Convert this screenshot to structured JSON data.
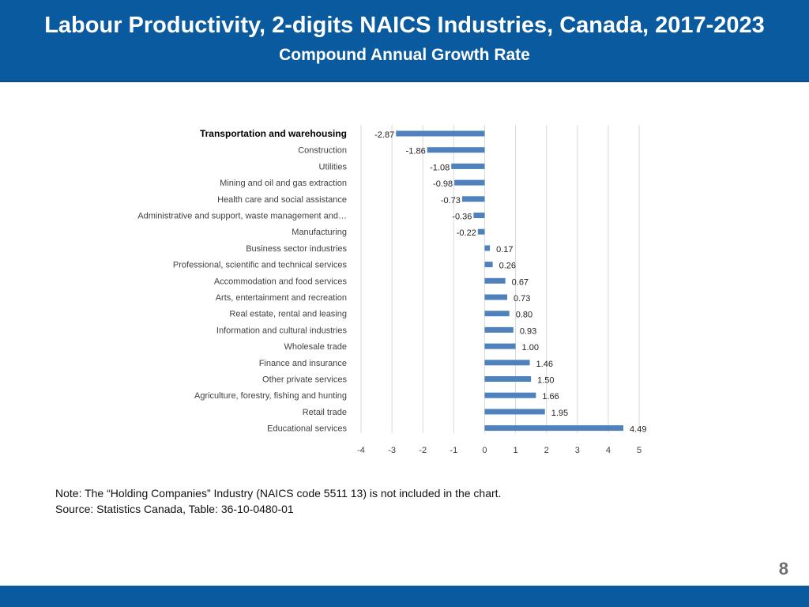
{
  "header": {
    "title": "Labour Productivity, 2-digits NAICS Industries, Canada, 2017-2023",
    "subtitle": "Compound Annual Growth Rate"
  },
  "chart_data": {
    "type": "bar",
    "orientation": "horizontal",
    "title": "Labour Productivity, 2-digits NAICS Industries, Canada, 2017-2023",
    "subtitle": "Compound Annual Growth Rate",
    "categories": [
      "Transportation and warehousing",
      "Construction",
      "Utilities",
      "Mining and oil and gas extraction",
      "Health care and social assistance",
      "Administrative and support, waste management and…",
      "Manufacturing",
      "Business sector industries",
      "Professional, scientific and technical services",
      "Accommodation and food services",
      "Arts, entertainment and recreation",
      "Real estate, rental and leasing",
      "Information and cultural industries",
      "Wholesale trade",
      "Finance and insurance",
      "Other private services",
      "Agriculture, forestry, fishing and hunting",
      "Retail trade",
      "Educational services"
    ],
    "values": [
      -2.87,
      -1.86,
      -1.08,
      -0.98,
      -0.73,
      -0.36,
      -0.22,
      0.17,
      0.26,
      0.67,
      0.73,
      0.8,
      0.93,
      1.0,
      1.46,
      1.5,
      1.66,
      1.95,
      4.49
    ],
    "value_labels": [
      "-2.87",
      "-1.86",
      "-1.08",
      "-0.98",
      "-0.73",
      "-0.36",
      "-0.22",
      "0.17",
      "0.26",
      "0.67",
      "0.73",
      "0.80",
      "0.93",
      "1.00",
      "1.46",
      "1.50",
      "1.66",
      "1.95",
      "4.49"
    ],
    "highlight_category": "Transportation and warehousing",
    "xlim": [
      -4,
      5
    ],
    "xticks": [
      -4,
      -3,
      -2,
      -1,
      0,
      1,
      2,
      3,
      4,
      5
    ],
    "grid": true,
    "xlabel": "",
    "ylabel": "",
    "bar_color": "#4f81bd",
    "grid_color": "#d9d9d9"
  },
  "notes": {
    "note": "Note: The “Holding Companies” Industry (NAICS code 5511 13) is not included in the chart.",
    "source": "Source: Statistics Canada, Table: 36-10-0480-01"
  },
  "page_number": "8",
  "colors": {
    "header_bg": "#0a5aa0",
    "footer_bg": "#0a5aa0"
  }
}
